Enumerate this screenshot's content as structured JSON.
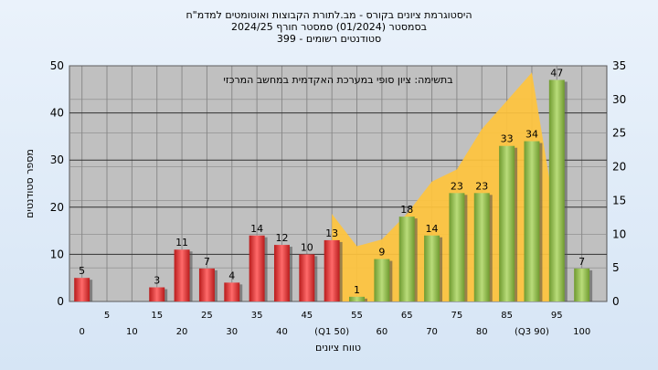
{
  "title_lines": [
    "היסטוגרמת ציונים בקורס - מב.לתורת הקבוצות ואוטומטים למדמ\"ח",
    "בסמסטר   (01/2024)   סמסטר חורף   2024/25",
    "399 - סטודנטים רשומים"
  ],
  "chart_data": {
    "type": "bar",
    "categories": [
      "0",
      "5",
      "10",
      "15",
      "20",
      "25",
      "30",
      "35",
      "40",
      "45",
      "50",
      "55",
      "60",
      "65",
      "70",
      "75",
      "80",
      "85",
      "90",
      "95",
      "100"
    ],
    "x_tick_labels": [
      "0",
      "5",
      "10",
      "15",
      "20",
      "25",
      "30",
      "35",
      "40",
      "45",
      "(Q1 50)",
      "55",
      "60",
      "65",
      "70",
      "75",
      "80",
      "85",
      "(Q3 90)",
      "95",
      "100"
    ],
    "series": [
      {
        "values": [
          5,
          0,
          0,
          3,
          11,
          7,
          4,
          14,
          12,
          10,
          13,
          1,
          9,
          18,
          14,
          23,
          23,
          33,
          34,
          47,
          7
        ]
      },
      {
        "values": [
          0,
          0,
          0,
          0,
          0,
          0,
          0,
          0,
          0,
          0,
          13,
          8.2,
          9.2,
          13,
          17.8,
          19.6,
          25.6,
          29.8,
          34,
          11.5,
          0
        ]
      }
    ],
    "labels": [
      "5",
      "",
      "",
      "3",
      "11",
      "7",
      "4",
      "14",
      "12",
      "10",
      "13",
      "1",
      "9",
      "18",
      "14",
      "23",
      "23",
      "33",
      "34",
      "47",
      "7"
    ],
    "xlabel": "טווח ציונים",
    "ylabel": "מספר סטודנטים",
    "ylim": [
      0,
      50
    ],
    "yticks": [
      0,
      10,
      20,
      30,
      40,
      50
    ],
    "y2lim": [
      0,
      35
    ],
    "y2ticks": [
      0,
      5,
      10,
      15,
      20,
      25,
      30,
      35
    ],
    "annotation": "בתשימה: ציון סופי במערכת האקדמית במחשב המרכזי",
    "colors": {
      "fail": "#e03a3a",
      "pass": "#8fbf4a",
      "area": "#ffc43d",
      "plot_bg": "#c0c0c0"
    },
    "grid": true
  }
}
